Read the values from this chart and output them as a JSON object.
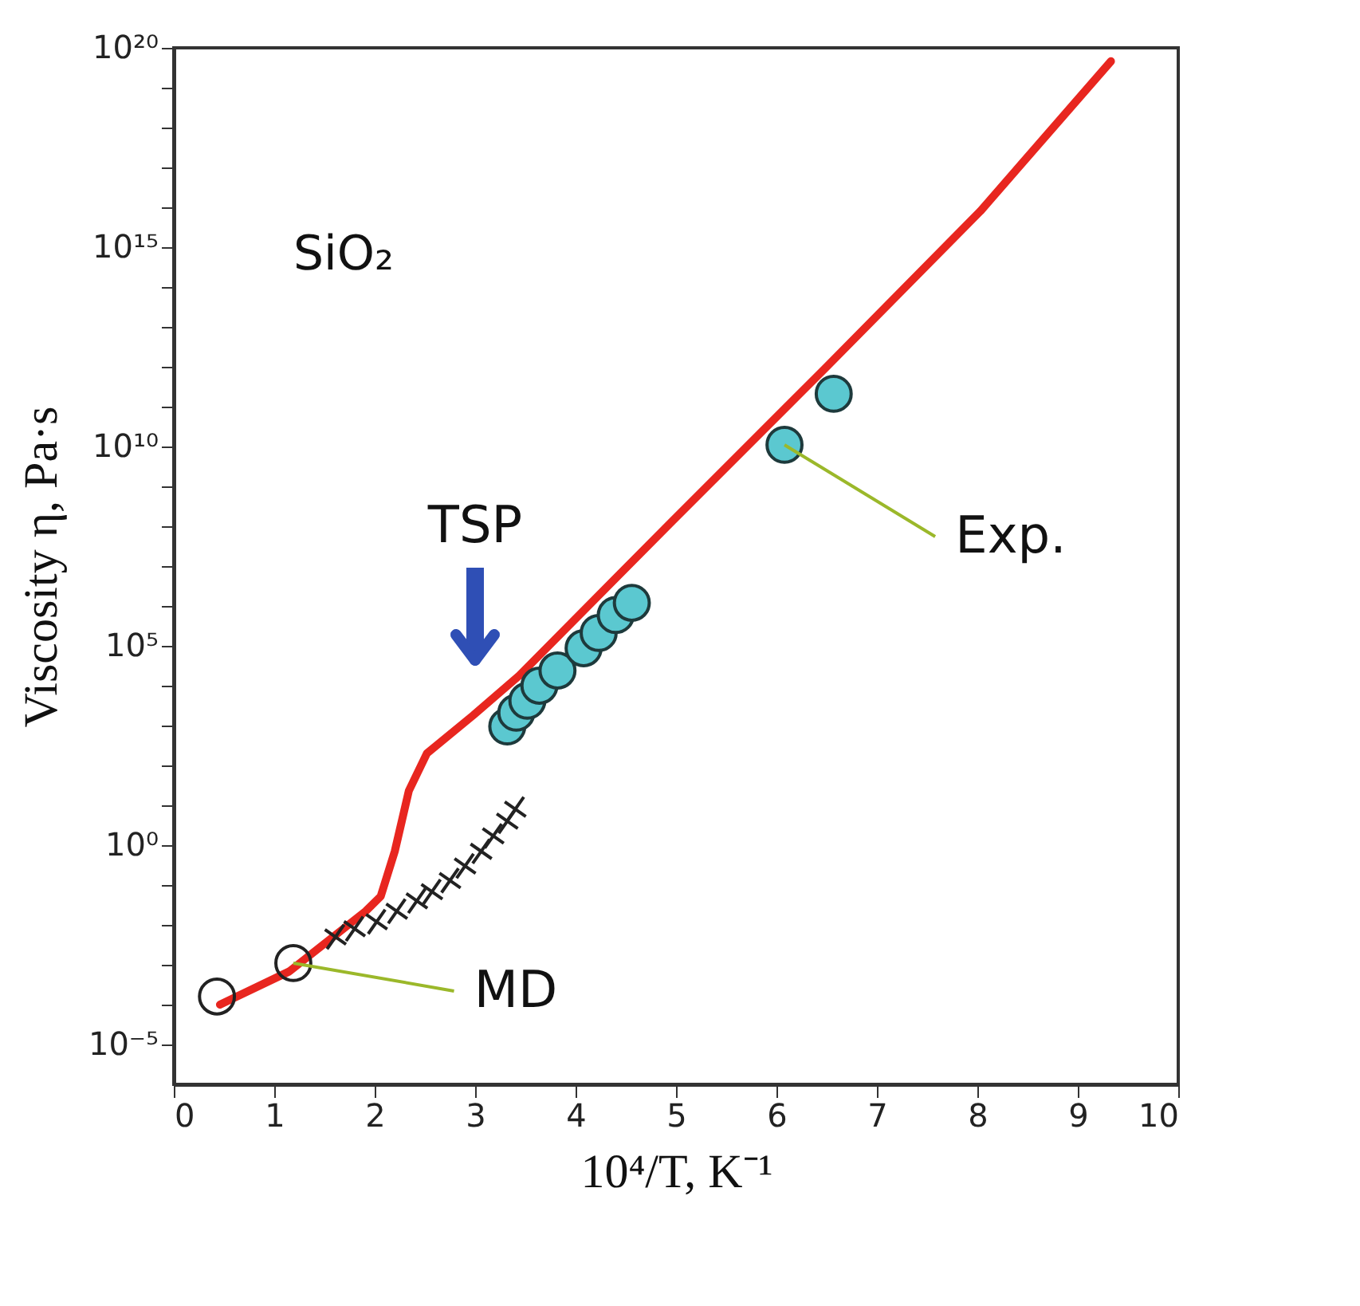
{
  "chart_data": {
    "type": "line",
    "xlabel": "10⁴/T, K⁻¹",
    "ylabel": "Viscosity η, Pa·s",
    "xlim": [
      0,
      10
    ],
    "xticks": [
      0,
      1,
      2,
      3,
      4,
      5,
      6,
      7,
      8,
      9,
      10
    ],
    "ylim": [
      1e-06,
      1e+20
    ],
    "log": "y",
    "yticks": [
      {
        "value": 1e-05,
        "label": "10⁻⁵"
      },
      {
        "value": 0.0001,
        "label": null
      },
      {
        "value": 0.001,
        "label": null
      },
      {
        "value": 0.01,
        "label": null
      },
      {
        "value": 0.1,
        "label": null
      },
      {
        "value": 1,
        "label": "10⁰"
      },
      {
        "value": 10.0,
        "label": null
      },
      {
        "value": 100.0,
        "label": null
      },
      {
        "value": 1000.0,
        "label": null
      },
      {
        "value": 10000.0,
        "label": null
      },
      {
        "value": 100000.0,
        "label": "10⁵"
      },
      {
        "value": 1000000.0,
        "label": null
      },
      {
        "value": 10000000.0,
        "label": null
      },
      {
        "value": 100000000.0,
        "label": null
      },
      {
        "value": 1000000000.0,
        "label": null
      },
      {
        "value": 10000000000.0,
        "label": "10¹⁰"
      },
      {
        "value": 100000000000.0,
        "label": null
      },
      {
        "value": 1000000000000.0,
        "label": null
      },
      {
        "value": 10000000000000.0,
        "label": null
      },
      {
        "value": 100000000000000.0,
        "label": null
      },
      {
        "value": 1000000000000000.0,
        "label": "10¹⁵"
      },
      {
        "value": 1e+16,
        "label": null
      },
      {
        "value": 1e+17,
        "label": null
      },
      {
        "value": 1e+18,
        "label": null
      },
      {
        "value": 1e+19,
        "label": null
      },
      {
        "value": 1e+20,
        "label": "10²⁰"
      }
    ],
    "grid": false,
    "series": [
      {
        "color": "#e8261f",
        "x": [
          0.46,
          1.15,
          1.91,
          2.06,
          2.2,
          2.34,
          2.52,
          2.98,
          3.44,
          4.97,
          6.5,
          8.03,
          9.33
        ],
        "values": [
          0.0001,
          0.00068,
          0.022,
          0.052,
          0.7,
          23,
          200,
          1800,
          18000,
          140000000.0,
          1000000000000.0,
          8000000000000000.0,
          4.6e+19
        ]
      },
      {
        "type": "scatter",
        "marker": "circle",
        "color": "#222222",
        "x": [
          0.43,
          1.19
        ],
        "values": [
          0.00016,
          0.0011
        ]
      },
      {
        "type": "scatter",
        "marker": "cross",
        "color": "#222222",
        "x": [
          1.61,
          1.8,
          2.02,
          2.22,
          2.42,
          2.57,
          2.75,
          2.9,
          3.06,
          3.18,
          3.32,
          3.4
        ],
        "values": [
          0.005,
          0.008,
          0.012,
          0.022,
          0.04,
          0.068,
          0.13,
          0.3,
          0.7,
          1.7,
          4,
          8
        ]
      },
      {
        "type": "scatter",
        "marker": "circle",
        "color": "#5bc8d0",
        "x": [
          3.32,
          3.41,
          3.52,
          3.64,
          3.82,
          4.08,
          4.23,
          4.4,
          4.56,
          6.08,
          6.57
        ],
        "values": [
          950,
          2100,
          4200,
          10000.0,
          24000.0,
          87000.0,
          210000.0,
          590000.0,
          1200000.0,
          11000000000.0,
          210000000000.0
        ]
      }
    ],
    "annotations": [
      "SiO₂",
      "TSP",
      {
        "text": "Exp.",
        "x": 6.08,
        "y": 11000000000.0
      },
      {
        "text": "MD",
        "x": 1.19,
        "y": 0.0011
      }
    ]
  }
}
